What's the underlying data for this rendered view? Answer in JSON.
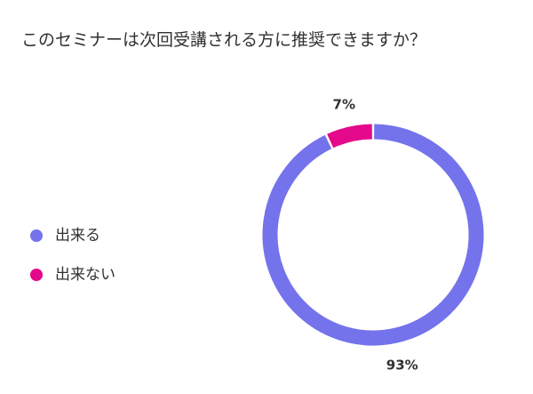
{
  "question": {
    "title": "このセミナーは次回受講される方に推奨できますか？"
  },
  "colors": {
    "yes": "#7473ec",
    "no": "#e4088a",
    "text": "#323130"
  },
  "legend": {
    "items": [
      {
        "label": "出来る",
        "color": "#7473ec"
      },
      {
        "label": "出来ない",
        "color": "#e4088a"
      }
    ]
  },
  "chart_data": {
    "type": "pie",
    "variant": "donut",
    "title": "このセミナーは次回受講される方に推奨できますか？",
    "categories": [
      "出来る",
      "出来ない"
    ],
    "values": [
      93,
      7
    ],
    "labels": [
      "93%",
      "7%"
    ],
    "colors": [
      "#7473ec",
      "#e4088a"
    ],
    "legend_position": "left"
  }
}
